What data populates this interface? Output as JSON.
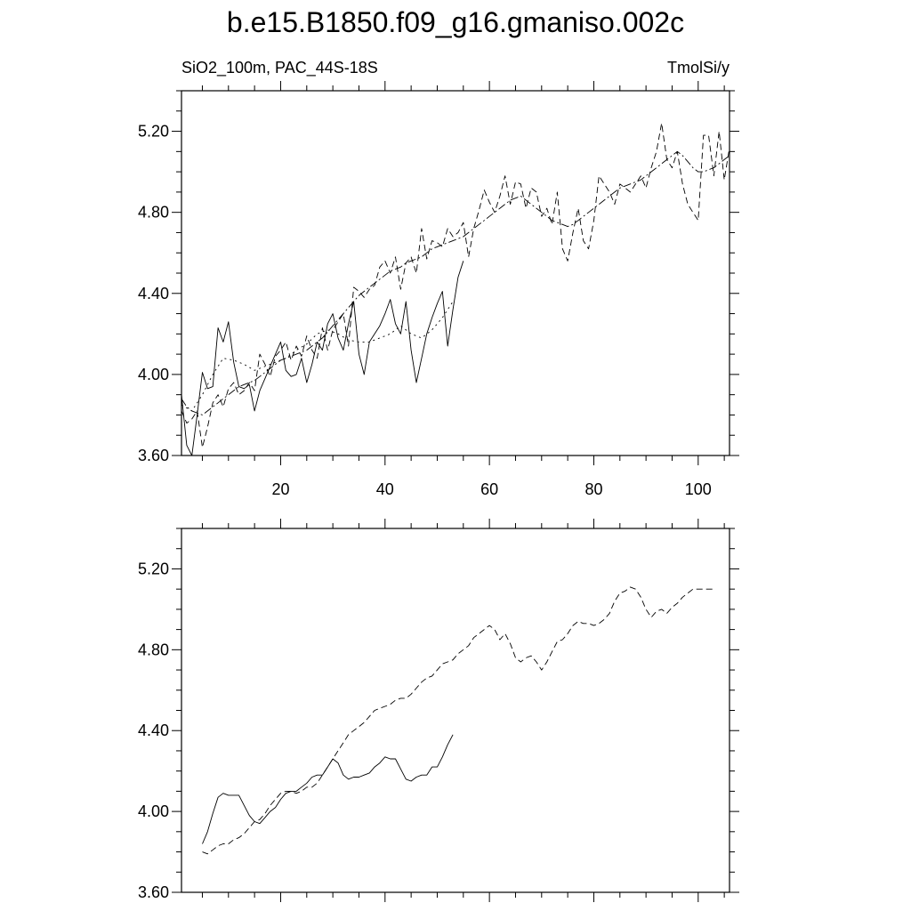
{
  "title": "b.e15.B1850.f09_g16.gmaniso.002c",
  "subtitle_left": "SiO2_100m, PAC_44S-18S",
  "subtitle_right": "TmolSi/y",
  "chart_data": [
    {
      "type": "line",
      "panel": "top",
      "xlim": [
        1,
        106
      ],
      "ylim": [
        3.6,
        5.4
      ],
      "xticks": [
        20,
        40,
        60,
        80,
        100
      ],
      "xtick_labels": [
        "20",
        "40",
        "60",
        "80",
        "100"
      ],
      "yticks": [
        3.6,
        4.0,
        4.4,
        4.8,
        5.2
      ],
      "ytick_labels": [
        "3.60",
        "4.00",
        "4.40",
        "4.80",
        "5.20"
      ],
      "grid": false,
      "series": [
        {
          "style": "solid",
          "x": [
            1,
            2,
            3,
            4,
            5,
            6,
            7,
            8,
            9,
            10,
            11,
            12,
            13,
            14,
            15,
            16,
            17,
            18,
            19,
            20,
            21,
            22,
            23,
            24,
            25,
            26,
            27,
            28,
            29,
            30,
            31,
            32,
            33,
            34,
            35,
            36,
            37,
            38,
            39,
            40,
            41,
            42,
            43,
            44,
            45,
            46,
            47,
            48,
            49,
            50,
            51,
            52,
            53,
            54,
            55
          ],
          "y": [
            3.9,
            3.65,
            3.6,
            3.8,
            4.01,
            3.93,
            3.94,
            4.23,
            4.16,
            4.26,
            4.06,
            3.94,
            3.93,
            3.95,
            3.82,
            3.92,
            3.98,
            4.04,
            4.1,
            4.16,
            4.02,
            3.99,
            4.0,
            4.08,
            3.96,
            4.05,
            4.16,
            4.12,
            4.25,
            4.3,
            4.18,
            4.12,
            4.25,
            4.36,
            4.1,
            4.0,
            4.16,
            4.2,
            4.24,
            4.3,
            4.37,
            4.25,
            4.2,
            4.36,
            4.12,
            3.96,
            4.08,
            4.2,
            4.28,
            4.35,
            4.41,
            4.14,
            4.32,
            4.48,
            4.56
          ]
        },
        {
          "style": "dashed",
          "x": [
            1,
            2,
            3,
            4,
            5,
            6,
            7,
            8,
            9,
            10,
            11,
            12,
            13,
            14,
            15,
            16,
            17,
            18,
            19,
            20,
            21,
            22,
            23,
            24,
            25,
            26,
            27,
            28,
            29,
            30,
            31,
            32,
            33,
            34,
            35,
            36,
            37,
            38,
            39,
            40,
            41,
            42,
            43,
            44,
            45,
            46,
            47,
            48,
            49,
            50,
            51,
            52,
            53,
            54,
            55,
            56,
            57,
            58,
            59,
            60,
            61,
            62,
            63,
            64,
            65,
            66,
            67,
            68,
            69,
            70,
            71,
            72,
            73,
            74,
            75,
            76,
            77,
            78,
            79,
            80,
            81,
            82,
            83,
            84,
            85,
            86,
            87,
            88,
            89,
            90,
            91,
            92,
            93,
            94,
            95,
            96,
            97,
            98,
            99,
            100,
            101,
            102,
            103,
            104,
            105,
            106
          ],
          "y": [
            3.82,
            3.76,
            3.78,
            3.82,
            3.64,
            3.74,
            3.86,
            3.9,
            3.84,
            3.93,
            3.96,
            3.9,
            3.92,
            3.96,
            3.92,
            4.1,
            4.05,
            3.99,
            4.09,
            4.12,
            4.16,
            4.07,
            4.14,
            4.09,
            4.19,
            4.12,
            4.08,
            4.23,
            4.12,
            4.22,
            4.26,
            4.3,
            4.14,
            4.43,
            4.41,
            4.38,
            4.42,
            4.44,
            4.53,
            4.56,
            4.5,
            4.58,
            4.42,
            4.55,
            4.58,
            4.5,
            4.72,
            4.57,
            4.66,
            4.65,
            4.63,
            4.72,
            4.68,
            4.7,
            4.75,
            4.58,
            4.72,
            4.81,
            4.91,
            4.85,
            4.8,
            4.88,
            4.98,
            4.84,
            4.95,
            4.94,
            4.82,
            4.92,
            4.9,
            4.78,
            4.82,
            4.74,
            4.9,
            4.62,
            4.56,
            4.7,
            4.82,
            4.66,
            4.62,
            4.76,
            4.98,
            4.94,
            4.9,
            4.84,
            4.94,
            4.92,
            4.9,
            4.94,
            4.98,
            4.92,
            5.02,
            5.1,
            5.24,
            5.06,
            5.02,
            5.1,
            4.94,
            4.84,
            4.8,
            4.76,
            5.18,
            5.18,
            4.98,
            5.2,
            4.96,
            5.12
          ]
        },
        {
          "style": "dash-dot",
          "x": [
            1,
            2,
            3,
            4,
            5,
            6,
            7,
            8,
            9,
            10,
            11,
            12,
            13,
            14,
            15,
            16,
            17,
            18,
            19,
            20,
            21,
            22,
            23,
            24,
            25,
            26,
            27,
            28,
            29,
            30,
            31,
            32,
            33,
            34,
            35,
            36,
            37,
            38,
            39,
            40,
            41,
            42,
            43,
            44,
            45,
            46,
            47,
            48,
            49,
            50,
            51,
            52,
            53,
            54,
            55,
            56,
            57,
            58,
            59,
            60,
            61,
            62,
            63,
            64,
            65,
            66,
            67,
            68,
            69,
            70,
            71,
            72,
            73,
            74,
            75,
            76,
            77,
            78,
            79,
            80,
            81,
            82,
            83,
            84,
            85,
            86,
            87,
            88,
            89,
            90,
            91,
            92,
            93,
            94,
            95,
            96,
            97,
            98,
            99,
            100,
            101,
            102,
            103,
            104,
            105,
            106
          ],
          "y": [
            3.88,
            3.84,
            3.82,
            3.81,
            3.8,
            3.82,
            3.84,
            3.86,
            3.88,
            3.9,
            3.92,
            3.94,
            3.95,
            3.96,
            3.97,
            3.99,
            4.01,
            4.03,
            4.05,
            4.07,
            4.08,
            4.09,
            4.1,
            4.11,
            4.12,
            4.14,
            4.16,
            4.18,
            4.21,
            4.24,
            4.27,
            4.3,
            4.33,
            4.36,
            4.39,
            4.41,
            4.43,
            4.45,
            4.47,
            4.49,
            4.51,
            4.52,
            4.53,
            4.55,
            4.56,
            4.57,
            4.58,
            4.6,
            4.62,
            4.63,
            4.64,
            4.65,
            4.66,
            4.67,
            4.68,
            4.7,
            4.72,
            4.74,
            4.76,
            4.78,
            4.8,
            4.82,
            4.84,
            4.86,
            4.87,
            4.88,
            4.86,
            4.84,
            4.82,
            4.8,
            4.78,
            4.76,
            4.75,
            4.74,
            4.73,
            4.74,
            4.76,
            4.78,
            4.8,
            4.82,
            4.84,
            4.86,
            4.88,
            4.9,
            4.92,
            4.93,
            4.94,
            4.95,
            4.96,
            4.98,
            5.0,
            5.02,
            5.04,
            5.06,
            5.08,
            5.1,
            5.08,
            5.05,
            5.02,
            5.0,
            5.0,
            5.01,
            5.02,
            5.04,
            5.06,
            5.08
          ]
        },
        {
          "style": "dotted",
          "x": [
            1,
            3,
            5,
            7,
            9,
            11,
            13,
            15,
            17,
            19,
            21,
            23,
            25,
            27,
            29,
            31,
            33,
            35,
            37,
            39,
            41,
            43,
            45,
            47,
            49,
            51,
            53
          ],
          "y": [
            3.85,
            3.82,
            3.9,
            4.0,
            4.08,
            4.07,
            4.05,
            4.02,
            4.04,
            4.06,
            4.08,
            4.12,
            4.15,
            4.2,
            4.22,
            4.2,
            4.17,
            4.16,
            4.16,
            4.18,
            4.2,
            4.24,
            4.2,
            4.18,
            4.22,
            4.28,
            4.36
          ]
        }
      ]
    },
    {
      "type": "line",
      "panel": "bottom",
      "xlim": [
        1,
        106
      ],
      "ylim": [
        3.6,
        5.4
      ],
      "xticks": [
        20,
        40,
        60,
        80,
        100
      ],
      "yticks": [
        3.6,
        4.0,
        4.4,
        4.8,
        5.2
      ],
      "ytick_labels": [
        "3.60",
        "4.00",
        "4.40",
        "4.80",
        "5.20"
      ],
      "grid": false,
      "series": [
        {
          "style": "solid",
          "x": [
            5,
            6,
            7,
            8,
            9,
            10,
            11,
            12,
            13,
            14,
            15,
            16,
            17,
            18,
            19,
            20,
            21,
            22,
            23,
            24,
            25,
            26,
            27,
            28,
            29,
            30,
            31,
            32,
            33,
            34,
            35,
            36,
            37,
            38,
            39,
            40,
            41,
            42,
            43,
            44,
            45,
            46,
            47,
            48,
            49,
            50,
            51,
            52,
            53
          ],
          "y": [
            3.84,
            3.9,
            3.99,
            4.07,
            4.09,
            4.08,
            4.08,
            4.08,
            4.03,
            3.98,
            3.95,
            3.94,
            3.97,
            4.0,
            4.02,
            4.06,
            4.09,
            4.1,
            4.1,
            4.12,
            4.14,
            4.17,
            4.18,
            4.18,
            4.22,
            4.26,
            4.24,
            4.18,
            4.16,
            4.17,
            4.17,
            4.18,
            4.19,
            4.22,
            4.24,
            4.27,
            4.26,
            4.26,
            4.21,
            4.16,
            4.15,
            4.17,
            4.18,
            4.18,
            4.22,
            4.22,
            4.27,
            4.33,
            4.38
          ]
        },
        {
          "style": "dashed",
          "x": [
            5,
            6,
            7,
            8,
            9,
            10,
            11,
            12,
            13,
            14,
            15,
            16,
            17,
            18,
            19,
            20,
            21,
            22,
            23,
            24,
            25,
            26,
            27,
            28,
            29,
            30,
            31,
            32,
            33,
            34,
            35,
            36,
            37,
            38,
            39,
            40,
            41,
            42,
            43,
            44,
            45,
            46,
            47,
            48,
            49,
            50,
            51,
            52,
            53,
            54,
            55,
            56,
            57,
            58,
            59,
            60,
            61,
            62,
            63,
            64,
            65,
            66,
            67,
            68,
            69,
            70,
            71,
            72,
            73,
            74,
            75,
            76,
            77,
            78,
            79,
            80,
            81,
            82,
            83,
            84,
            85,
            86,
            87,
            88,
            89,
            90,
            91,
            92,
            93,
            94,
            95,
            96,
            97,
            98,
            99,
            100,
            101,
            102,
            103
          ],
          "y": [
            3.8,
            3.79,
            3.81,
            3.83,
            3.84,
            3.84,
            3.86,
            3.87,
            3.89,
            3.92,
            3.95,
            3.96,
            3.99,
            4.03,
            4.06,
            4.09,
            4.1,
            4.1,
            4.09,
            4.1,
            4.12,
            4.12,
            4.14,
            4.18,
            4.22,
            4.26,
            4.3,
            4.34,
            4.38,
            4.4,
            4.42,
            4.44,
            4.47,
            4.5,
            4.51,
            4.52,
            4.53,
            4.55,
            4.56,
            4.56,
            4.58,
            4.61,
            4.64,
            4.66,
            4.67,
            4.7,
            4.73,
            4.74,
            4.75,
            4.78,
            4.8,
            4.82,
            4.86,
            4.88,
            4.9,
            4.92,
            4.9,
            4.85,
            4.88,
            4.83,
            4.76,
            4.74,
            4.76,
            4.77,
            4.74,
            4.7,
            4.74,
            4.79,
            4.84,
            4.85,
            4.88,
            4.92,
            4.94,
            4.93,
            4.93,
            4.92,
            4.93,
            4.95,
            4.98,
            5.04,
            5.08,
            5.09,
            5.11,
            5.1,
            5.06,
            5.0,
            4.96,
            4.99,
            5.0,
            4.98,
            5.01,
            5.03,
            5.06,
            5.08,
            5.1,
            5.1,
            5.1,
            5.1,
            5.1
          ]
        }
      ]
    }
  ]
}
